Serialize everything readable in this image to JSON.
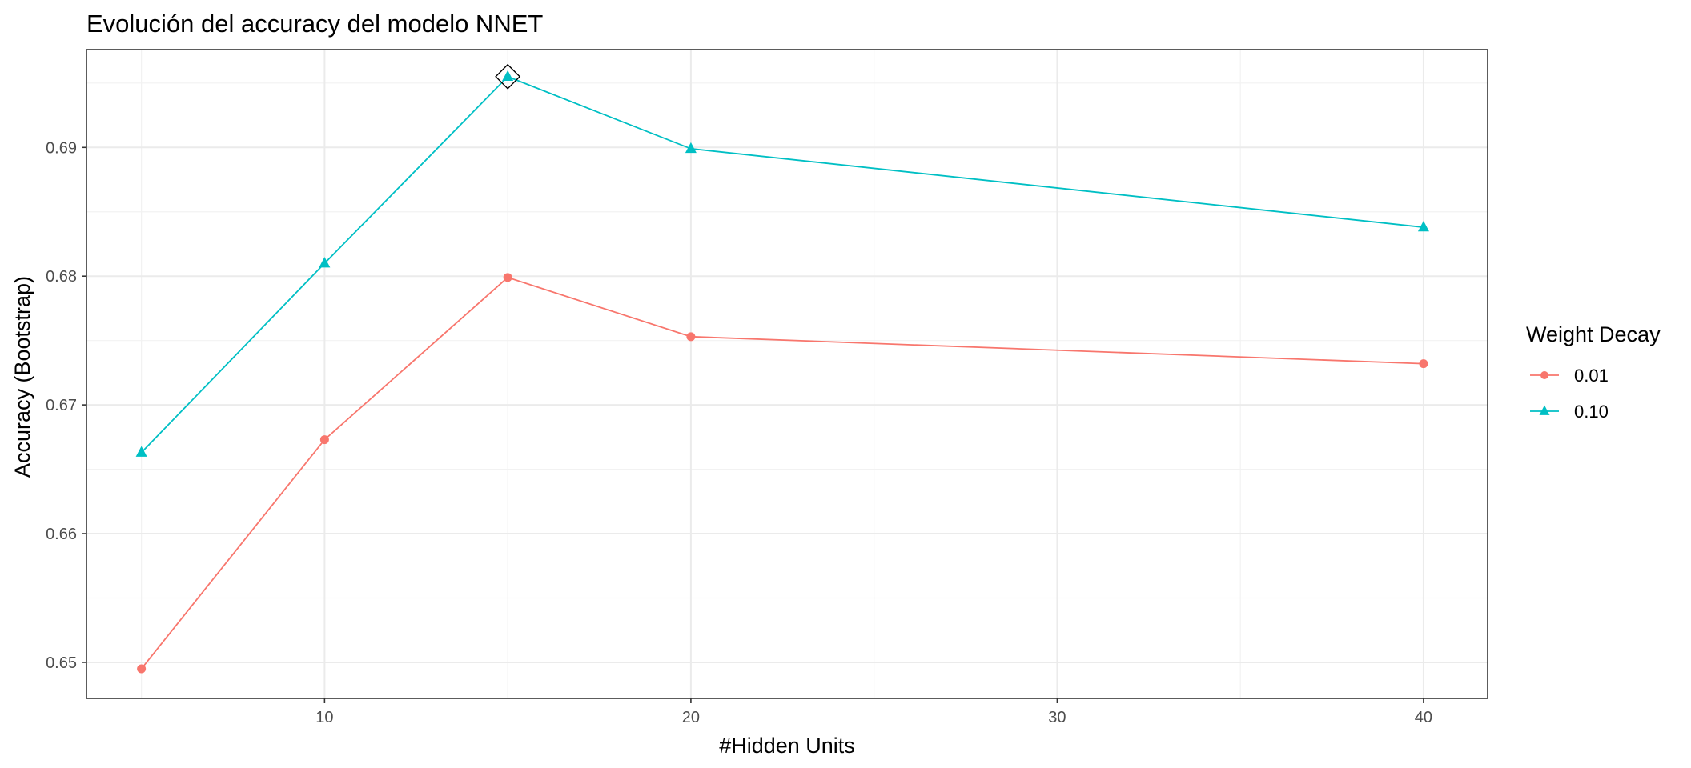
{
  "chart_data": {
    "type": "line",
    "title": "Evolución del accuracy del modelo NNET",
    "xlabel": "#Hidden Units",
    "ylabel": "Accuracy (Bootstrap)",
    "x": [
      5,
      10,
      15,
      20,
      40
    ],
    "xlim": [
      3.5,
      41.75
    ],
    "ylim": [
      0.6472,
      0.6976
    ],
    "xticks": [
      10,
      20,
      30,
      40
    ],
    "xtick_labels": [
      "10",
      "20",
      "30",
      "40"
    ],
    "yticks": [
      0.65,
      0.66,
      0.67,
      0.68,
      0.69
    ],
    "ytick_labels": [
      "0.65",
      "0.66",
      "0.67",
      "0.68",
      "0.69"
    ],
    "grid": true,
    "legend": {
      "title": "Weight Decay",
      "position": "right"
    },
    "series": [
      {
        "name": "0.01",
        "color": "#F8766D",
        "marker": "circle",
        "values": [
          0.6495,
          0.6673,
          0.6799,
          0.6753,
          0.6732
        ]
      },
      {
        "name": "0.10",
        "color": "#00BFC4",
        "marker": "triangle",
        "values": [
          0.6663,
          0.681,
          0.6955,
          0.6899,
          0.6838
        ]
      }
    ],
    "best": {
      "x": 15,
      "y": 0.6955,
      "marker": "diamond"
    }
  }
}
